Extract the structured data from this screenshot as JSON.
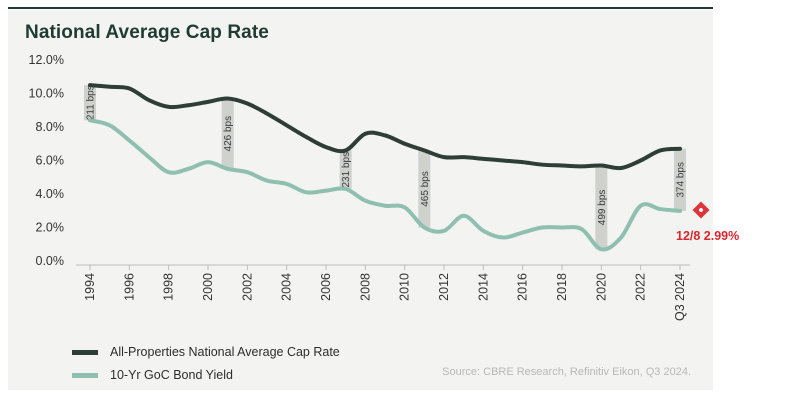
{
  "title": "National Average Cap Rate",
  "source": "Source: CBRE Research, Refinitiv Eikon, Q3 2024.",
  "annotation": {
    "text": "12/8 2.99%",
    "color": "#e0343a"
  },
  "colors": {
    "cap_rate": "#2e3d37",
    "bond_yield": "#8fbfb0",
    "spread_box": "#c8cac7"
  },
  "chart_data": {
    "type": "line",
    "ylim": [
      0,
      12
    ],
    "yticks": [
      "0.0%",
      "2.0%",
      "4.0%",
      "6.0%",
      "8.0%",
      "10.0%",
      "12.0%"
    ],
    "xticks": [
      {
        "x": 1994,
        "label": "1994"
      },
      {
        "x": 1996,
        "label": "1996"
      },
      {
        "x": 1998,
        "label": "1998"
      },
      {
        "x": 2000,
        "label": "2000"
      },
      {
        "x": 2002,
        "label": "2002"
      },
      {
        "x": 2004,
        "label": "2004"
      },
      {
        "x": 2006,
        "label": "2006"
      },
      {
        "x": 2008,
        "label": "2008"
      },
      {
        "x": 2010,
        "label": "2010"
      },
      {
        "x": 2012,
        "label": "2012"
      },
      {
        "x": 2014,
        "label": "2014"
      },
      {
        "x": 2016,
        "label": "2016"
      },
      {
        "x": 2018,
        "label": "2018"
      },
      {
        "x": 2020,
        "label": "2020"
      },
      {
        "x": 2022,
        "label": "2022"
      },
      {
        "x": 2024,
        "label": "Q3 2024"
      }
    ],
    "series": [
      {
        "name": "All-Properties National Average Cap Rate",
        "x": [
          1994,
          1995,
          1996,
          1997,
          1998,
          1999,
          2000,
          2001,
          2002,
          2003,
          2004,
          2005,
          2006,
          2007,
          2008,
          2009,
          2010,
          2011,
          2012,
          2013,
          2014,
          2015,
          2016,
          2017,
          2018,
          2019,
          2020,
          2021,
          2022,
          2023,
          2024
        ],
        "values": [
          10.5,
          10.4,
          10.3,
          9.6,
          9.2,
          9.3,
          9.5,
          9.7,
          9.4,
          8.8,
          8.1,
          7.4,
          6.8,
          6.6,
          7.6,
          7.5,
          7.0,
          6.6,
          6.2,
          6.2,
          6.1,
          6.0,
          5.9,
          5.75,
          5.7,
          5.65,
          5.7,
          5.55,
          6.0,
          6.6,
          6.7
        ]
      },
      {
        "name": "10-Yr GoC Bond Yield",
        "x": [
          1994,
          1995,
          1996,
          1997,
          1998,
          1999,
          2000,
          2001,
          2002,
          2003,
          2004,
          2005,
          2006,
          2007,
          2008,
          2009,
          2010,
          2011,
          2012,
          2013,
          2014,
          2015,
          2016,
          2017,
          2018,
          2019,
          2020,
          2021,
          2022,
          2023,
          2024
        ],
        "values": [
          8.4,
          8.1,
          7.2,
          6.2,
          5.3,
          5.5,
          5.9,
          5.5,
          5.3,
          4.8,
          4.6,
          4.1,
          4.2,
          4.3,
          3.6,
          3.3,
          3.2,
          2.0,
          1.8,
          2.7,
          1.8,
          1.4,
          1.7,
          2.0,
          2.0,
          1.9,
          0.7,
          1.4,
          3.3,
          3.1,
          2.99
        ]
      }
    ],
    "spreads": [
      {
        "x": 1994,
        "label": "211 bps",
        "low": 8.4,
        "high": 10.5
      },
      {
        "x": 2001,
        "label": "426 bps",
        "low": 5.5,
        "high": 9.7
      },
      {
        "x": 2007,
        "label": "231 bps",
        "low": 4.3,
        "high": 6.6
      },
      {
        "x": 2011,
        "label": "465 bps",
        "low": 2.0,
        "high": 6.6
      },
      {
        "x": 2020,
        "label": "499 bps",
        "low": 0.7,
        "high": 5.7
      },
      {
        "x": 2024,
        "label": "374 bps",
        "low": 2.99,
        "high": 6.7
      }
    ]
  }
}
